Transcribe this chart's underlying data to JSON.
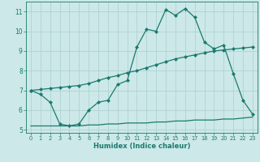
{
  "xlabel": "Humidex (Indice chaleur)",
  "bg_color": "#cce8e8",
  "line_color": "#1a7a6e",
  "grid_color": "#aacfcf",
  "xlim": [
    -0.5,
    23.5
  ],
  "ylim": [
    4.85,
    11.5
  ],
  "yticks": [
    5,
    6,
    7,
    8,
    9,
    10,
    11
  ],
  "xticks": [
    0,
    1,
    2,
    3,
    4,
    5,
    6,
    7,
    8,
    9,
    10,
    11,
    12,
    13,
    14,
    15,
    16,
    17,
    18,
    19,
    20,
    21,
    22,
    23
  ],
  "curve1_x": [
    0,
    1,
    2,
    3,
    4,
    5,
    6,
    7,
    8,
    9,
    10,
    11,
    12,
    13,
    14,
    15,
    16,
    17,
    18,
    19,
    20,
    21,
    22,
    23
  ],
  "curve1_y": [
    7.0,
    6.8,
    6.4,
    5.3,
    5.2,
    5.3,
    6.0,
    6.4,
    6.5,
    7.3,
    7.5,
    9.2,
    10.1,
    10.0,
    11.1,
    10.8,
    11.15,
    10.7,
    9.45,
    9.1,
    9.3,
    7.85,
    6.5,
    5.8
  ],
  "curve2_x": [
    0,
    1,
    2,
    3,
    4,
    5,
    6,
    7,
    8,
    9,
    10,
    11,
    12,
    13,
    14,
    15,
    16,
    17,
    18,
    19,
    20,
    21,
    22,
    23
  ],
  "curve2_y": [
    7.0,
    7.05,
    7.1,
    7.15,
    7.2,
    7.25,
    7.35,
    7.5,
    7.65,
    7.75,
    7.9,
    8.0,
    8.15,
    8.3,
    8.45,
    8.6,
    8.7,
    8.8,
    8.9,
    9.0,
    9.05,
    9.1,
    9.15,
    9.2
  ],
  "curve3_x": [
    0,
    1,
    2,
    3,
    4,
    5,
    6,
    7,
    8,
    9,
    10,
    11,
    12,
    13,
    14,
    15,
    16,
    17,
    18,
    19,
    20,
    21,
    22,
    23
  ],
  "curve3_y": [
    5.2,
    5.2,
    5.2,
    5.2,
    5.2,
    5.2,
    5.25,
    5.25,
    5.3,
    5.3,
    5.35,
    5.35,
    5.35,
    5.4,
    5.4,
    5.45,
    5.45,
    5.5,
    5.5,
    5.5,
    5.55,
    5.55,
    5.6,
    5.65
  ]
}
